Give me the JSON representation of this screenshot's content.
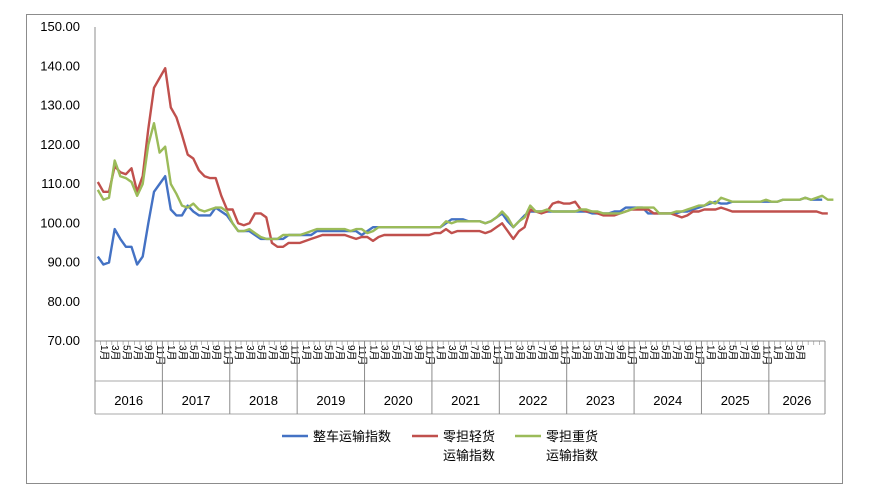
{
  "chart_data": {
    "type": "line",
    "y_ticks": [
      "150.00",
      "140.00",
      "130.00",
      "120.00",
      "110.00",
      "100.00",
      "90.00",
      "80.00",
      "70.00"
    ],
    "ylim": [
      70,
      150
    ],
    "x_start": "2016-01",
    "month_ticks": [
      "1月",
      "3月",
      "5月",
      "7月",
      "9月",
      "11月"
    ],
    "years": [
      "2016",
      "2017",
      "2018",
      "2019",
      "2020",
      "2021",
      "2022",
      "2023",
      "2024",
      "2025",
      "2026"
    ],
    "last_year_month_ticks": [
      "1月",
      "3月",
      "5月"
    ],
    "series": [
      {
        "name": "整车运输指数",
        "color": "#4472c4",
        "values": [
          91.5,
          89.5,
          90,
          98.5,
          96,
          94,
          94,
          89.5,
          91.5,
          100,
          108,
          110,
          112,
          103.5,
          102,
          102,
          104.5,
          103,
          102,
          102,
          102,
          104,
          103,
          102,
          100,
          98,
          98,
          98,
          97,
          96,
          96,
          96,
          96,
          96,
          97,
          97,
          97,
          97,
          97,
          98,
          98,
          98,
          98,
          98,
          98,
          98,
          98,
          97,
          98,
          99,
          99,
          99,
          99,
          99,
          99,
          99,
          99,
          99,
          99,
          99,
          99,
          99,
          100,
          101,
          101,
          101,
          100.5,
          100.5,
          100.5,
          100,
          100.5,
          101.5,
          102.5,
          100.5,
          99,
          100.5,
          102,
          103,
          103,
          103,
          103,
          103,
          103,
          103,
          103,
          103,
          103,
          103,
          102.5,
          102.5,
          102.5,
          102.5,
          103,
          103,
          104,
          104,
          104,
          104,
          102.5,
          102.5,
          102.5,
          102.5,
          102.5,
          102.5,
          103,
          103,
          103.5,
          104,
          104.5,
          105,
          105.5,
          105,
          105,
          105.5,
          105.5,
          105.5,
          105.5,
          105.5,
          105.5,
          105.5,
          105.5,
          105.5,
          106,
          106,
          106,
          106,
          106.5,
          106,
          106,
          106
        ]
      },
      {
        "name": "零担轻货运输指数",
        "color": "#c0504d",
        "values": [
          110.5,
          108,
          108,
          114.5,
          113,
          112.5,
          114,
          108,
          112,
          124,
          134.5,
          137,
          139.5,
          129.5,
          127,
          122.5,
          117.5,
          116.5,
          113.5,
          112,
          111.5,
          111.5,
          107,
          103.5,
          103.5,
          100,
          99.5,
          100,
          102.5,
          102.5,
          101.5,
          95,
          94,
          94,
          95,
          95,
          95,
          95.5,
          96,
          96.5,
          97,
          97,
          97,
          97,
          97,
          96.5,
          96,
          96.5,
          96.5,
          95.5,
          96.5,
          97,
          97,
          97,
          97,
          97,
          97,
          97,
          97,
          97,
          97.5,
          97.5,
          98.5,
          97.5,
          98,
          98,
          98,
          98,
          98,
          97.5,
          98,
          99,
          100,
          98,
          96,
          98,
          99,
          103.5,
          103,
          102.5,
          103,
          105,
          105.5,
          105,
          105,
          105.5,
          103.5,
          103,
          103,
          102.5,
          102,
          102,
          102,
          102.5,
          103,
          103.5,
          103.5,
          103.5,
          103.5,
          102.5,
          102.5,
          102.5,
          102.5,
          102,
          101.5,
          102,
          103,
          103,
          103.5,
          103.5,
          103.5,
          104,
          103.5,
          103,
          103,
          103,
          103,
          103,
          103,
          103,
          103,
          103,
          103,
          103,
          103,
          103,
          103,
          103,
          103,
          102.5,
          102.5
        ]
      },
      {
        "name": "零担重货运输指数",
        "color": "#9bbb59",
        "values": [
          108.5,
          106,
          106.5,
          116,
          112,
          111.5,
          110.5,
          107,
          110,
          120,
          125.5,
          118,
          119.5,
          110,
          107.5,
          104.5,
          104,
          105,
          103.5,
          103,
          103.5,
          104,
          104,
          103,
          100,
          98,
          98,
          98.5,
          97.5,
          96.5,
          96,
          96,
          96,
          97,
          97,
          97,
          97,
          97.5,
          98,
          98.5,
          98.5,
          98.5,
          98.5,
          98.5,
          98.5,
          98,
          98.5,
          98.5,
          97.5,
          98,
          99,
          99,
          99,
          99,
          99,
          99,
          99,
          99,
          99,
          99,
          99,
          99,
          100.5,
          100,
          100.5,
          100.5,
          100.5,
          100.5,
          100.5,
          100,
          100.5,
          101.5,
          103,
          101.5,
          99,
          100.5,
          101.5,
          104.5,
          103,
          103,
          103.5,
          103,
          103,
          103,
          103,
          103,
          103.5,
          103.5,
          103,
          103,
          102.5,
          102.5,
          102.5,
          102.5,
          103,
          103.5,
          104,
          104,
          104,
          104,
          102.5,
          102.5,
          102.5,
          103,
          103,
          103.5,
          104,
          104.5,
          104.5,
          105.5,
          105,
          106.5,
          106,
          105.5,
          105.5,
          105.5,
          105.5,
          105.5,
          105.5,
          106,
          105.5,
          105.5,
          106,
          106,
          106,
          106,
          106.5,
          106,
          106.5,
          107,
          106,
          106
        ]
      }
    ]
  }
}
